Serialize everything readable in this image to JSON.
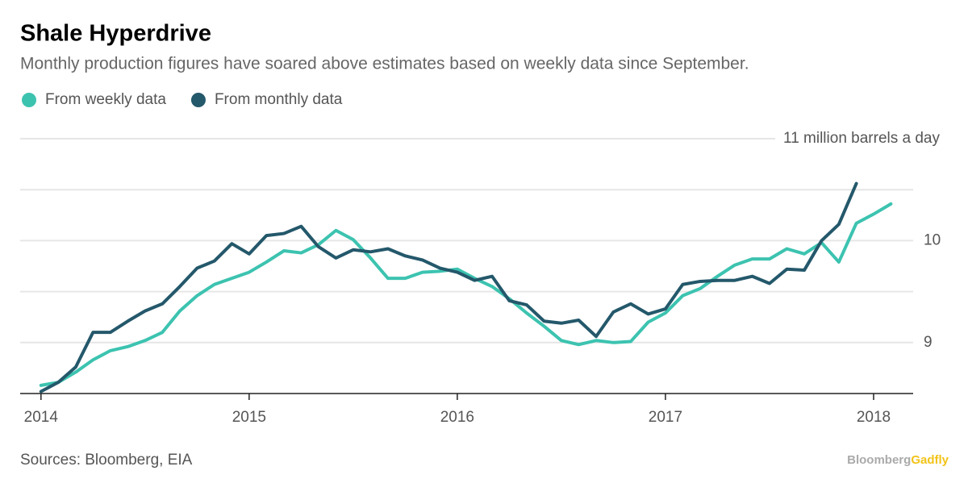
{
  "chart_data": {
    "type": "line",
    "title": "Shale Hyperdrive",
    "subtitle": "Monthly production figures have soared above estimates based on weekly data since September.",
    "source": "Sources: Bloomberg, EIA",
    "brand": [
      "Bloomberg",
      "Gadfly"
    ],
    "x": [
      2014,
      2014.083,
      2014.167,
      2014.25,
      2014.333,
      2014.417,
      2014.5,
      2014.583,
      2014.667,
      2014.75,
      2014.833,
      2014.917,
      2015,
      2015.083,
      2015.167,
      2015.25,
      2015.333,
      2015.417,
      2015.5,
      2015.583,
      2015.667,
      2015.75,
      2015.833,
      2015.917,
      2016,
      2016.083,
      2016.167,
      2016.25,
      2016.333,
      2016.417,
      2016.5,
      2016.583,
      2016.667,
      2016.75,
      2016.833,
      2016.917,
      2017,
      2017.083,
      2017.167,
      2017.25,
      2017.333,
      2017.417,
      2017.5,
      2017.583,
      2017.667,
      2017.75,
      2017.833,
      2017.917,
      2018,
      2018.083
    ],
    "series": [
      {
        "name": "From weekly data",
        "color": "#3cc3b0",
        "values": [
          8.58,
          8.61,
          8.71,
          8.83,
          8.92,
          8.96,
          9.02,
          9.1,
          9.31,
          9.46,
          9.57,
          9.63,
          9.69,
          9.79,
          9.9,
          9.88,
          9.96,
          10.1,
          10.01,
          9.83,
          9.63,
          9.63,
          9.69,
          9.7,
          9.72,
          9.63,
          9.55,
          9.43,
          9.29,
          9.16,
          9.02,
          8.98,
          9.02,
          9.0,
          9.01,
          9.2,
          9.29,
          9.46,
          9.53,
          9.65,
          9.76,
          9.82,
          9.82,
          9.92,
          9.87,
          9.98,
          9.79,
          10.17,
          10.26,
          10.36
        ]
      },
      {
        "name": "From monthly data",
        "color": "#24586b",
        "values": [
          8.52,
          8.61,
          8.76,
          9.1,
          9.1,
          9.21,
          9.31,
          9.38,
          9.55,
          9.73,
          9.8,
          9.97,
          9.87,
          10.05,
          10.07,
          10.14,
          9.94,
          9.83,
          9.91,
          9.89,
          9.92,
          9.85,
          9.81,
          9.73,
          9.69,
          9.61,
          9.65,
          9.41,
          9.37,
          9.21,
          9.19,
          9.22,
          9.06,
          9.3,
          9.38,
          9.28,
          9.33,
          9.57,
          9.6,
          9.61,
          9.61,
          9.65,
          9.58,
          9.72,
          9.71,
          10.0,
          10.16,
          10.56,
          null,
          null
        ]
      }
    ],
    "xlim": [
      2013.9,
      2018.19
    ],
    "xticks": [
      2014,
      2015,
      2016,
      2017,
      2018
    ],
    "ylim": [
      8.5,
      11
    ],
    "yticks": [
      9,
      10,
      {
        "value": 11,
        "label": "11 million barrels a day"
      }
    ],
    "ygrid": [
      9,
      9.5,
      10,
      10.5,
      11
    ]
  }
}
